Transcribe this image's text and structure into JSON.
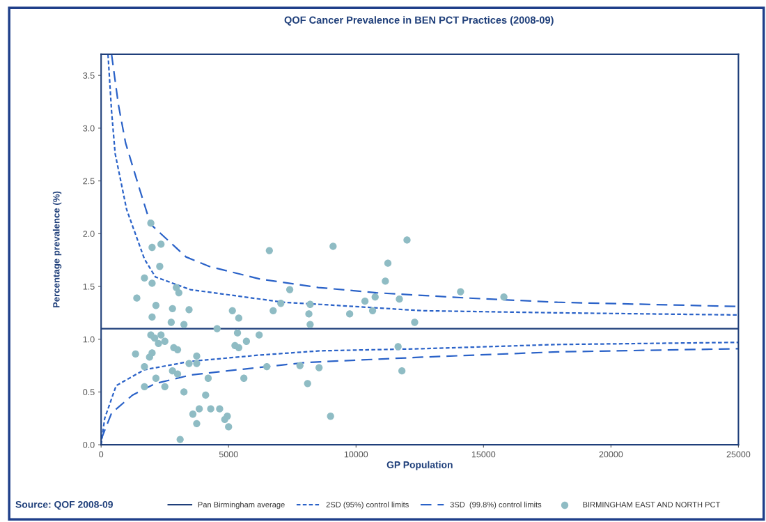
{
  "chart_data": {
    "type": "scatter",
    "title": "QOF Cancer Prevalence in BEN PCT Practices (2008-09)",
    "xlabel": "GP Population",
    "ylabel": "Percentage prevalence (%)",
    "annotations": [
      "Source: QOF 2008-09"
    ],
    "xlim": [
      0,
      25000
    ],
    "ylim": [
      0,
      3.7
    ],
    "xticks": [
      0,
      5000,
      10000,
      15000,
      20000,
      25000
    ],
    "yticks": [
      {
        "value": 0,
        "label": "0.0"
      },
      {
        "value": 0.5,
        "label": "0.5"
      },
      {
        "value": 1,
        "label": "1.0"
      },
      {
        "value": 1.5,
        "label": "1.5"
      },
      {
        "value": 2,
        "label": "2.0"
      },
      {
        "value": 2.5,
        "label": "2.5"
      },
      {
        "value": 3,
        "label": "3.0"
      },
      {
        "value": 3.5,
        "label": "3.5"
      }
    ],
    "grid": false,
    "legend": "bottom",
    "series": [
      {
        "name": "Pan Birmingham average",
        "type": "line",
        "line_style": "solid",
        "color": "#1f3f7a",
        "x": [
          0,
          25000
        ],
        "values": [
          1.1,
          1.1
        ]
      },
      {
        "name": "2SD (95%) control limits",
        "type": "line",
        "line_style": "dotted",
        "color": "#2a62c8",
        "x": [
          270,
          410,
          550,
          1000,
          1700,
          2130,
          3500,
          5330,
          7150,
          8600,
          12600,
          17900,
          25000
        ],
        "values": [
          3.7,
          3.16,
          2.76,
          2.23,
          1.76,
          1.59,
          1.47,
          1.41,
          1.35,
          1.33,
          1.27,
          1.25,
          1.23
        ]
      },
      {
        "type": "line",
        "line_style": "dotted",
        "color": "#2a62c8",
        "x": [
          0,
          140,
          590,
          1690,
          3500,
          6230,
          8600,
          12600,
          17900,
          25000
        ],
        "values": [
          0,
          0.25,
          0.56,
          0.71,
          0.79,
          0.85,
          0.89,
          0.91,
          0.95,
          0.97
        ]
      },
      {
        "name": "3SD  (99.8%) control limits",
        "type": "line",
        "line_style": "dashed",
        "color": "#2a62c8",
        "x": [
          410,
          680,
          960,
          1500,
          1940,
          3330,
          4240,
          6230,
          8520,
          10800,
          14400,
          17900,
          25000
        ],
        "values": [
          3.7,
          3.22,
          2.86,
          2.43,
          2.09,
          1.78,
          1.69,
          1.57,
          1.49,
          1.44,
          1.39,
          1.35,
          1.31
        ]
      },
      {
        "type": "line",
        "line_style": "dashed",
        "color": "#2a62c8",
        "x": [
          0,
          410,
          1230,
          2130,
          3500,
          5330,
          8060,
          12600,
          17900,
          25000
        ],
        "values": [
          0.05,
          0.3,
          0.47,
          0.58,
          0.66,
          0.71,
          0.78,
          0.83,
          0.88,
          0.91
        ]
      },
      {
        "name": "BIRMINGHAM EAST AND NORTH PCT",
        "marker": "circle",
        "color": "#8fbcc4",
        "x": [
          1950,
          2000,
          2350,
          2300,
          1700,
          2000,
          2950,
          3050,
          1400,
          2150,
          2800,
          3450,
          2000,
          2750,
          3250,
          4550,
          1950,
          2100,
          2350,
          2250,
          2500,
          2850,
          3000,
          1350,
          1900,
          2000,
          1700,
          2150,
          2800,
          3000,
          2500,
          1700,
          3450,
          3750,
          3750,
          3250,
          4200,
          4100,
          3600,
          3850,
          3750,
          4300,
          4650,
          4950,
          4850,
          5000,
          3100,
          5150,
          5400,
          5350,
          6200,
          5250,
          5400,
          5700,
          5600,
          6600,
          7400,
          6750,
          7050,
          8200,
          8150,
          8200,
          6500,
          7800,
          8100,
          8550,
          9100,
          12000,
          11250,
          11150,
          14100,
          15800,
          10350,
          10750,
          11700,
          9750,
          10650,
          12300,
          11650,
          11800,
          9000
        ],
        "values": [
          2.1,
          1.87,
          1.9,
          1.69,
          1.58,
          1.53,
          1.49,
          1.44,
          1.39,
          1.32,
          1.29,
          1.28,
          1.21,
          1.16,
          1.14,
          1.1,
          1.04,
          1.01,
          1.04,
          0.96,
          0.98,
          0.92,
          0.9,
          0.86,
          0.83,
          0.87,
          0.74,
          0.63,
          0.7,
          0.67,
          0.55,
          0.55,
          0.77,
          0.77,
          0.84,
          0.5,
          0.63,
          0.47,
          0.29,
          0.34,
          0.2,
          0.34,
          0.34,
          0.27,
          0.24,
          0.17,
          0.05,
          1.27,
          1.2,
          1.06,
          1.04,
          0.94,
          0.92,
          0.98,
          0.63,
          1.84,
          1.47,
          1.27,
          1.34,
          1.33,
          1.24,
          1.14,
          0.74,
          0.75,
          0.58,
          0.73,
          1.88,
          1.94,
          1.72,
          1.55,
          1.45,
          1.4,
          1.36,
          1.4,
          1.38,
          1.24,
          1.27,
          1.16,
          0.93,
          0.7,
          0.27
        ]
      }
    ]
  }
}
